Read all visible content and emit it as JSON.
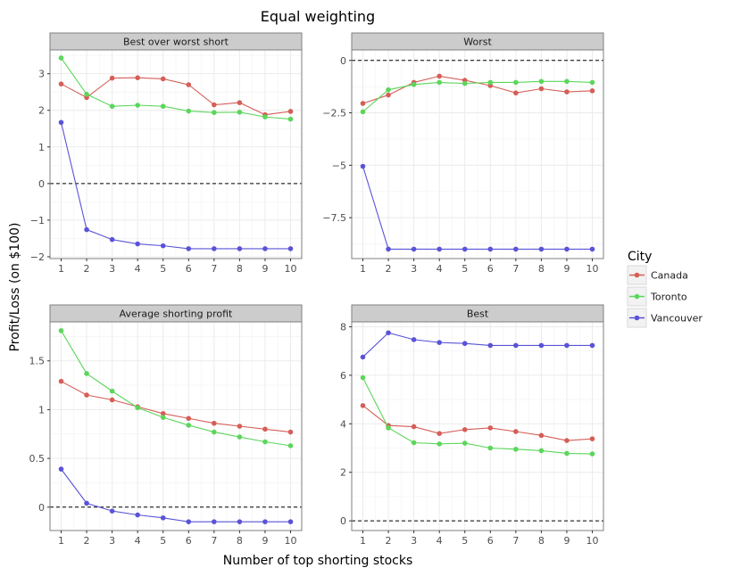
{
  "chart_data": {
    "type": "line",
    "title": "Equal weighting",
    "xlabel": "Number of top shorting stocks",
    "ylabel": "Profit/Loss (on $100)",
    "x": [
      1,
      2,
      3,
      4,
      5,
      6,
      7,
      8,
      9,
      10
    ],
    "xticks": [
      "1",
      "2",
      "3",
      "4",
      "5",
      "6",
      "7",
      "8",
      "9",
      "10"
    ],
    "grid": true,
    "reference_line_y": 0,
    "legend": {
      "title": "City",
      "placement": "right",
      "entries": [
        {
          "name": "Canada",
          "color": "#d55e57"
        },
        {
          "name": "Toronto",
          "color": "#5bd65b"
        },
        {
          "name": "Vancouver",
          "color": "#5a53d6"
        }
      ]
    },
    "panels": [
      {
        "title": "Best over worst short",
        "ylim": [
          -2.05,
          3.65
        ],
        "yticks": [
          -2,
          -1,
          0,
          1,
          2,
          3
        ],
        "ytick_labels": [
          "−2",
          "−1",
          "0",
          "1",
          "2",
          "3"
        ],
        "series": [
          {
            "name": "Canada",
            "values": [
              2.72,
              2.35,
              2.88,
              2.89,
              2.86,
              2.7,
              2.15,
              2.21,
              1.88,
              1.97
            ]
          },
          {
            "name": "Toronto",
            "values": [
              3.43,
              2.44,
              2.11,
              2.14,
              2.11,
              1.98,
              1.94,
              1.95,
              1.82,
              1.76
            ]
          },
          {
            "name": "Vancouver",
            "values": [
              1.67,
              -1.26,
              -1.53,
              -1.65,
              -1.7,
              -1.78,
              -1.78,
              -1.78,
              -1.78,
              -1.78
            ]
          }
        ]
      },
      {
        "title": "Worst",
        "ylim": [
          -9.45,
          0.5
        ],
        "yticks": [
          0,
          -2.5,
          -5,
          -7.5
        ],
        "ytick_labels": [
          "0",
          "−2.5",
          "−5",
          "−7.5"
        ],
        "series": [
          {
            "name": "Canada",
            "values": [
              -2.05,
              -1.65,
              -1.05,
              -0.75,
              -0.95,
              -1.2,
              -1.55,
              -1.35,
              -1.5,
              -1.45
            ]
          },
          {
            "name": "Toronto",
            "values": [
              -2.45,
              -1.4,
              -1.15,
              -1.05,
              -1.1,
              -1.05,
              -1.05,
              -1.0,
              -1.0,
              -1.05
            ]
          },
          {
            "name": "Vancouver",
            "values": [
              -5.05,
              -9.0,
              -9.0,
              -9.0,
              -9.0,
              -9.0,
              -9.0,
              -9.0,
              -9.0,
              -9.0
            ]
          }
        ]
      },
      {
        "title": "Average shorting profit",
        "ylim": [
          -0.24,
          1.9
        ],
        "yticks": [
          0,
          0.5,
          1,
          1.5
        ],
        "ytick_labels": [
          "0",
          "0.5",
          "1",
          "1.5"
        ],
        "series": [
          {
            "name": "Canada",
            "values": [
              1.29,
              1.15,
              1.1,
              1.03,
              0.96,
              0.91,
              0.86,
              0.83,
              0.8,
              0.77
            ]
          },
          {
            "name": "Toronto",
            "values": [
              1.81,
              1.37,
              1.19,
              1.02,
              0.92,
              0.84,
              0.77,
              0.72,
              0.67,
              0.63
            ]
          },
          {
            "name": "Vancouver",
            "values": [
              0.39,
              0.04,
              -0.04,
              -0.08,
              -0.11,
              -0.15,
              -0.15,
              -0.15,
              -0.15,
              -0.15
            ]
          }
        ]
      },
      {
        "title": "Best",
        "ylim": [
          -0.4,
          8.2
        ],
        "yticks": [
          0,
          2,
          4,
          6,
          8
        ],
        "ytick_labels": [
          "0",
          "2",
          "4",
          "6",
          "8"
        ],
        "series": [
          {
            "name": "Canada",
            "values": [
              4.75,
              3.93,
              3.88,
              3.6,
              3.76,
              3.83,
              3.68,
              3.52,
              3.31,
              3.38
            ]
          },
          {
            "name": "Toronto",
            "values": [
              5.9,
              3.83,
              3.22,
              3.17,
              3.2,
              3.0,
              2.95,
              2.89,
              2.78,
              2.76
            ]
          },
          {
            "name": "Vancouver",
            "values": [
              6.75,
              7.75,
              7.47,
              7.35,
              7.31,
              7.23,
              7.23,
              7.23,
              7.23,
              7.23
            ]
          }
        ]
      }
    ]
  }
}
